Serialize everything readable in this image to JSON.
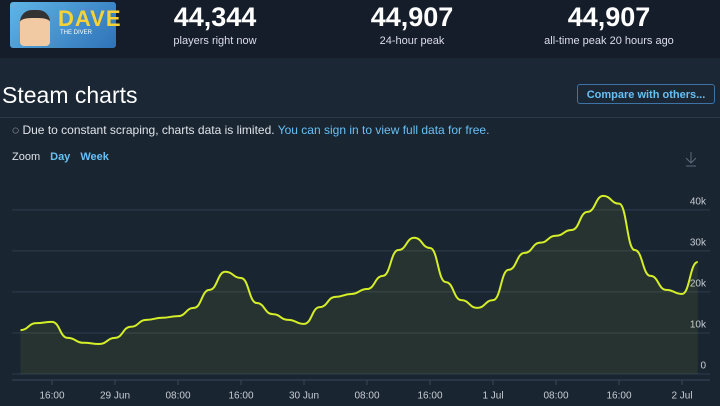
{
  "header": {
    "logo": {
      "title": "DAVE",
      "subtitle": "THE DIVER"
    },
    "stats": [
      {
        "value": "44,344",
        "label": "players right now"
      },
      {
        "value": "44,907",
        "label": "24-hour peak"
      },
      {
        "value": "44,907",
        "label": "all-time peak 20 hours ago"
      }
    ]
  },
  "section": {
    "title": "Steam charts",
    "button": "Compare with others..."
  },
  "notice": {
    "text": "Due to constant scraping, charts data is limited.",
    "link": "You can sign in to view full data for free."
  },
  "zoom": {
    "label": "Zoom",
    "options": [
      "Day",
      "Week"
    ]
  },
  "chart_data": {
    "type": "line",
    "color": "#d4ee27",
    "categories": [
      null,
      null,
      "16:00",
      null,
      null,
      null,
      "29 Jun",
      null,
      null,
      null,
      "08:00",
      null,
      null,
      null,
      "16:00",
      null,
      null,
      null,
      "30 Jun",
      null,
      null,
      null,
      "08:00",
      null,
      null,
      null,
      "16:00",
      null,
      null,
      null,
      "1 Jul",
      null,
      null,
      null,
      "08:00",
      null,
      null,
      null,
      "16:00",
      null,
      null,
      null,
      "2 Jul",
      null
    ],
    "values": [
      10700,
      12400,
      12700,
      8800,
      7600,
      7300,
      8800,
      11500,
      13200,
      13700,
      14100,
      16100,
      20500,
      24900,
      23400,
      17300,
      14600,
      13200,
      12200,
      16300,
      18800,
      19500,
      20700,
      23900,
      30200,
      33200,
      30700,
      22400,
      18000,
      16100,
      18000,
      25400,
      29500,
      32000,
      33700,
      35100,
      39500,
      43400,
      41500,
      30200,
      23900,
      20500,
      19500,
      27300
    ],
    "ylim": [
      0,
      48000
    ],
    "yticks": [
      0,
      {
        "value": 10000,
        "label": "10k"
      },
      {
        "value": 20000,
        "label": "20k"
      },
      {
        "value": 30000,
        "label": "30k"
      },
      {
        "value": 40000,
        "label": "40k"
      }
    ],
    "grid": true
  }
}
